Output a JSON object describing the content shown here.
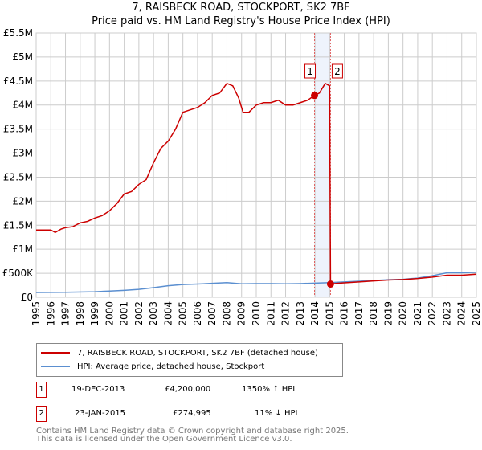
{
  "chart_data": {
    "type": "line",
    "title": "7, RAISBECK ROAD, STOCKPORT, SK2 7BF",
    "subtitle": "Price paid vs. HM Land Registry's House Price Index (HPI)",
    "xlim": [
      1995,
      2025
    ],
    "ylim": [
      0,
      5500000
    ],
    "yticks": [
      {
        "v": 0,
        "l": "£0"
      },
      {
        "v": 500000,
        "l": "£500K"
      },
      {
        "v": 1000000,
        "l": "£1M"
      },
      {
        "v": 1500000,
        "l": "£1.5M"
      },
      {
        "v": 2000000,
        "l": "£2M"
      },
      {
        "v": 2500000,
        "l": "£2.5M"
      },
      {
        "v": 3000000,
        "l": "£3M"
      },
      {
        "v": 3500000,
        "l": "£3.5M"
      },
      {
        "v": 4000000,
        "l": "£4M"
      },
      {
        "v": 4500000,
        "l": "£4.5M"
      },
      {
        "v": 5000000,
        "l": "£5M"
      },
      {
        "v": 5500000,
        "l": "£5.5M"
      }
    ],
    "xticks": [
      "1995",
      "1996",
      "1997",
      "1998",
      "1999",
      "2000",
      "2001",
      "2002",
      "2003",
      "2004",
      "2005",
      "2006",
      "2007",
      "2008",
      "2009",
      "2010",
      "2011",
      "2012",
      "2013",
      "2014",
      "2015",
      "2016",
      "2017",
      "2018",
      "2019",
      "2020",
      "2021",
      "2022",
      "2023",
      "2024",
      "2025"
    ],
    "grid": true,
    "series": [
      {
        "name": "7, RAISBECK ROAD, STOCKPORT, SK2 7BF (detached house)",
        "color": "#cc0000",
        "x": [
          1995,
          1995.5,
          1996,
          1996.3,
          1996.7,
          1997,
          1997.5,
          1998,
          1998.5,
          1999,
          1999.5,
          2000,
          2000.5,
          2001,
          2001.5,
          2002,
          2002.5,
          2003,
          2003.5,
          2004,
          2004.5,
          2005,
          2005.5,
          2006,
          2006.5,
          2007,
          2007.5,
          2008,
          2008.4,
          2008.8,
          2009.1,
          2009.5,
          2010,
          2010.5,
          2011,
          2011.5,
          2012,
          2012.5,
          2013,
          2013.5,
          2013.97,
          2014.3,
          2014.7,
          2015.0,
          2015.06,
          2015.5,
          2016,
          2017,
          2018,
          2019,
          2020,
          2021,
          2022,
          2023,
          2024,
          2025
        ],
        "y": [
          1400000,
          1400000,
          1400000,
          1350000,
          1420000,
          1450000,
          1470000,
          1550000,
          1580000,
          1650000,
          1700000,
          1800000,
          1950000,
          2150000,
          2200000,
          2350000,
          2450000,
          2800000,
          3100000,
          3250000,
          3500000,
          3850000,
          3900000,
          3950000,
          4050000,
          4200000,
          4250000,
          4450000,
          4400000,
          4150000,
          3850000,
          3850000,
          4000000,
          4050000,
          4050000,
          4100000,
          4000000,
          4000000,
          4050000,
          4100000,
          4200000,
          4250000,
          4450000,
          4400000,
          274995,
          290000,
          300000,
          320000,
          340000,
          360000,
          370000,
          390000,
          420000,
          460000,
          460000,
          480000
        ]
      },
      {
        "name": "HPI: Average price, detached house, Stockport",
        "color": "#5b8fd0",
        "x": [
          1995,
          1997,
          1999,
          2000,
          2001,
          2002,
          2003,
          2004,
          2005,
          2006,
          2007,
          2008,
          2009,
          2010,
          2011,
          2012,
          2013,
          2014,
          2015,
          2016,
          2017,
          2018,
          2019,
          2020,
          2021,
          2022,
          2023,
          2024,
          2025
        ],
        "y": [
          100000,
          105000,
          115000,
          130000,
          145000,
          165000,
          200000,
          240000,
          265000,
          275000,
          290000,
          305000,
          280000,
          285000,
          285000,
          280000,
          285000,
          295000,
          305000,
          320000,
          335000,
          350000,
          365000,
          375000,
          400000,
          450000,
          510000,
          510000,
          520000
        ]
      }
    ],
    "annotations": [
      {
        "label": "1",
        "x": 2013.97,
        "y": 4200000
      },
      {
        "label": "2",
        "x": 2015.06,
        "y": 274995
      }
    ]
  },
  "legend": {
    "red": "7, RAISBECK ROAD, STOCKPORT, SK2 7BF (detached house)",
    "blue": "HPI: Average price, detached house, Stockport"
  },
  "transactions": [
    {
      "num": "1",
      "date": "19-DEC-2013",
      "price": "£4,200,000",
      "hpi": "1350% ↑ HPI"
    },
    {
      "num": "2",
      "date": "23-JAN-2015",
      "price": "£274,995",
      "hpi": "11% ↓ HPI"
    }
  ],
  "footer": {
    "line1": "Contains HM Land Registry data © Crown copyright and database right 2025.",
    "line2": "This data is licensed under the Open Government Licence v3.0."
  }
}
